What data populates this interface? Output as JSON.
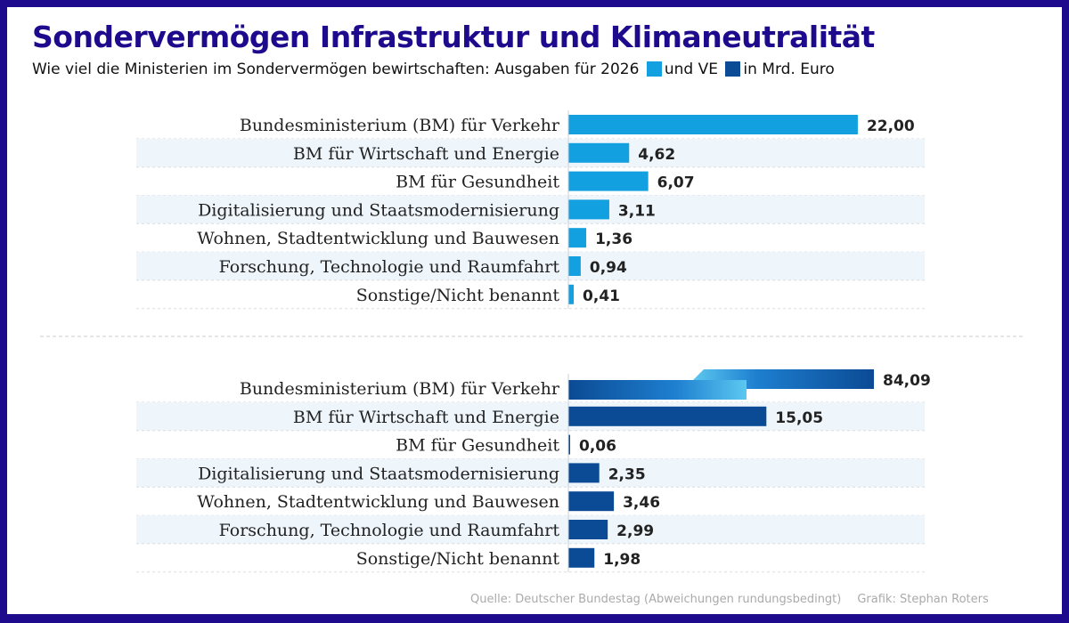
{
  "title": "Sondervermögen Infrastruktur und Klimaneutralität",
  "subtitle": {
    "text": "Wie viel die Ministerien im Sondervermögen bewirtschaften: Ausgaben für 2026",
    "legend_1": "und VE",
    "legend_2": "in Mrd. Euro"
  },
  "footer": {
    "source": "Quelle: Deutscher Bundestag (Abweichungen rundungsbedingt)",
    "credit": "Grafik: Stephan Roters"
  },
  "colors": {
    "frame": "#1e0a8c",
    "ausgaben": "#12a0e0",
    "ve": "#0b4a94",
    "stripe": "#eef6fc"
  },
  "chart_data": [
    {
      "type": "bar",
      "orientation": "horizontal",
      "series_name": "Ausgaben für 2026",
      "unit": "Mrd. Euro",
      "categories": [
        "Bundesministerium (BM) für Verkehr",
        "BM für Wirtschaft und Energie",
        "BM für Gesundheit",
        "Digitalisierung und Staatsmodernisierung",
        "Wohnen, Stadtentwicklung und Bauwesen",
        "Forschung, Technologie und Raumfahrt",
        "Sonstige/Nicht benannt"
      ],
      "values": [
        22.0,
        4.62,
        6.07,
        3.11,
        1.36,
        0.94,
        0.41
      ],
      "labels": [
        "22,00",
        "4,62",
        "6,07",
        "3,11",
        "1,36",
        "0,94",
        "0,41"
      ],
      "color": "#12a0e0"
    },
    {
      "type": "bar",
      "orientation": "horizontal",
      "series_name": "VE",
      "unit": "Mrd. Euro",
      "categories": [
        "Bundesministerium (BM) für Verkehr",
        "BM für Wirtschaft und Energie",
        "BM für Gesundheit",
        "Digitalisierung und Staatsmodernisierung",
        "Wohnen, Stadtentwicklung und Bauwesen",
        "Forschung, Technologie und Raumfahrt",
        "Sonstige/Nicht benannt"
      ],
      "values": [
        84.09,
        15.05,
        0.06,
        2.35,
        3.46,
        2.99,
        1.98
      ],
      "labels": [
        "84,09",
        "15,05",
        "0,06",
        "2,35",
        "3,46",
        "2,99",
        "1,98"
      ],
      "color": "#0b4a94",
      "broken_bar": "Bundesministerium (BM) für Verkehr"
    }
  ]
}
